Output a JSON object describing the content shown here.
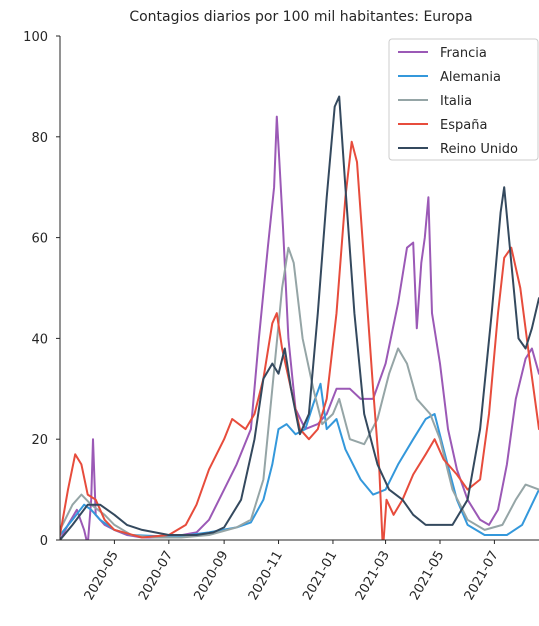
{
  "chart_data": {
    "type": "line",
    "title": "Contagios diarios por 100 mil habitantes: Europa",
    "xlabel": "",
    "ylabel": "",
    "xlim": [
      "2020-03-01",
      "2021-08-20"
    ],
    "ylim": [
      0,
      100
    ],
    "y_ticks": [
      0,
      20,
      40,
      60,
      80,
      100
    ],
    "x_ticks": [
      "2020-05",
      "2020-07",
      "2020-09",
      "2020-11",
      "2021-01",
      "2021-03",
      "2021-05",
      "2021-07"
    ],
    "grid": false,
    "legend_position": "top-right",
    "series": [
      {
        "name": "Francia",
        "color": "#9b59b6",
        "points": [
          [
            "2020-03-01",
            0
          ],
          [
            "2020-03-10",
            3
          ],
          [
            "2020-03-20",
            6
          ],
          [
            "2020-03-28",
            2
          ],
          [
            "2020-04-01",
            -1
          ],
          [
            "2020-04-05",
            8
          ],
          [
            "2020-04-07",
            20
          ],
          [
            "2020-04-10",
            5
          ],
          [
            "2020-04-20",
            3
          ],
          [
            "2020-05-01",
            2
          ],
          [
            "2020-05-15",
            1
          ],
          [
            "2020-06-01",
            0.5
          ],
          [
            "2020-07-01",
            0.5
          ],
          [
            "2020-08-01",
            1.5
          ],
          [
            "2020-08-15",
            4
          ],
          [
            "2020-09-01",
            10
          ],
          [
            "2020-09-15",
            15
          ],
          [
            "2020-10-01",
            22
          ],
          [
            "2020-10-10",
            40
          ],
          [
            "2020-10-20",
            58
          ],
          [
            "2020-10-27",
            70
          ],
          [
            "2020-10-30",
            84
          ],
          [
            "2020-11-02",
            75
          ],
          [
            "2020-11-06",
            62
          ],
          [
            "2020-11-12",
            40
          ],
          [
            "2020-11-20",
            26
          ],
          [
            "2020-12-01",
            22
          ],
          [
            "2020-12-15",
            23
          ],
          [
            "2020-12-25",
            25
          ],
          [
            "2021-01-05",
            30
          ],
          [
            "2021-01-20",
            30
          ],
          [
            "2021-02-01",
            28
          ],
          [
            "2021-02-15",
            28
          ],
          [
            "2021-03-01",
            35
          ],
          [
            "2021-03-15",
            47
          ],
          [
            "2021-03-25",
            58
          ],
          [
            "2021-04-01",
            59
          ],
          [
            "2021-04-05",
            42
          ],
          [
            "2021-04-10",
            55
          ],
          [
            "2021-04-14",
            60
          ],
          [
            "2021-04-18",
            68
          ],
          [
            "2021-04-22",
            45
          ],
          [
            "2021-05-01",
            35
          ],
          [
            "2021-05-10",
            22
          ],
          [
            "2021-05-20",
            14
          ],
          [
            "2021-06-01",
            8
          ],
          [
            "2021-06-15",
            4
          ],
          [
            "2021-06-25",
            3
          ],
          [
            "2021-07-05",
            6
          ],
          [
            "2021-07-15",
            15
          ],
          [
            "2021-07-25",
            28
          ],
          [
            "2021-08-05",
            36
          ],
          [
            "2021-08-12",
            38
          ],
          [
            "2021-08-20",
            33
          ]
        ]
      },
      {
        "name": "Alemania",
        "color": "#3498db",
        "points": [
          [
            "2020-03-01",
            1
          ],
          [
            "2020-03-15",
            4
          ],
          [
            "2020-03-28",
            7
          ],
          [
            "2020-04-05",
            6
          ],
          [
            "2020-04-15",
            4
          ],
          [
            "2020-05-01",
            2
          ],
          [
            "2020-05-20",
            1
          ],
          [
            "2020-06-15",
            0.8
          ],
          [
            "2020-07-15",
            0.8
          ],
          [
            "2020-08-15",
            1.5
          ],
          [
            "2020-09-15",
            2.5
          ],
          [
            "2020-10-01",
            3.5
          ],
          [
            "2020-10-15",
            8
          ],
          [
            "2020-10-25",
            15
          ],
          [
            "2020-11-01",
            22
          ],
          [
            "2020-11-10",
            23
          ],
          [
            "2020-11-20",
            21
          ],
          [
            "2020-12-01",
            22
          ],
          [
            "2020-12-10",
            27
          ],
          [
            "2020-12-18",
            31
          ],
          [
            "2020-12-25",
            22
          ],
          [
            "2021-01-05",
            24
          ],
          [
            "2021-01-15",
            18
          ],
          [
            "2021-02-01",
            12
          ],
          [
            "2021-02-15",
            9
          ],
          [
            "2021-03-01",
            10
          ],
          [
            "2021-03-15",
            15
          ],
          [
            "2021-04-01",
            20
          ],
          [
            "2021-04-15",
            24
          ],
          [
            "2021-04-25",
            25
          ],
          [
            "2021-05-05",
            18
          ],
          [
            "2021-05-20",
            8
          ],
          [
            "2021-06-01",
            3
          ],
          [
            "2021-06-20",
            1
          ],
          [
            "2021-07-15",
            1
          ],
          [
            "2021-08-01",
            3
          ],
          [
            "2021-08-20",
            10
          ]
        ]
      },
      {
        "name": "Italia",
        "color": "#95a5a6",
        "points": [
          [
            "2020-03-01",
            2
          ],
          [
            "2020-03-15",
            7
          ],
          [
            "2020-03-25",
            9
          ],
          [
            "2020-04-05",
            7
          ],
          [
            "2020-04-20",
            5
          ],
          [
            "2020-05-01",
            3
          ],
          [
            "2020-05-20",
            1
          ],
          [
            "2020-06-15",
            0.5
          ],
          [
            "2020-07-15",
            0.5
          ],
          [
            "2020-08-15",
            1
          ],
          [
            "2020-09-15",
            2.5
          ],
          [
            "2020-10-01",
            4
          ],
          [
            "2020-10-15",
            12
          ],
          [
            "2020-10-25",
            30
          ],
          [
            "2020-11-05",
            50
          ],
          [
            "2020-11-12",
            58
          ],
          [
            "2020-11-18",
            55
          ],
          [
            "2020-11-28",
            40
          ],
          [
            "2020-12-10",
            30
          ],
          [
            "2020-12-20",
            23
          ],
          [
            "2021-01-01",
            25
          ],
          [
            "2021-01-08",
            28
          ],
          [
            "2021-01-20",
            20
          ],
          [
            "2021-02-05",
            19
          ],
          [
            "2021-02-20",
            24
          ],
          [
            "2021-03-05",
            33
          ],
          [
            "2021-03-15",
            38
          ],
          [
            "2021-03-25",
            35
          ],
          [
            "2021-04-05",
            28
          ],
          [
            "2021-04-20",
            25
          ],
          [
            "2021-05-01",
            20
          ],
          [
            "2021-05-15",
            10
          ],
          [
            "2021-06-01",
            4
          ],
          [
            "2021-06-20",
            2
          ],
          [
            "2021-07-10",
            3
          ],
          [
            "2021-07-25",
            8
          ],
          [
            "2021-08-05",
            11
          ],
          [
            "2021-08-20",
            10
          ]
        ]
      },
      {
        "name": "España",
        "color": "#e74c3c",
        "points": [
          [
            "2020-03-01",
            1
          ],
          [
            "2020-03-10",
            10
          ],
          [
            "2020-03-18",
            17
          ],
          [
            "2020-03-25",
            15
          ],
          [
            "2020-04-01",
            9
          ],
          [
            "2020-04-10",
            8
          ],
          [
            "2020-04-20",
            4
          ],
          [
            "2020-05-01",
            2
          ],
          [
            "2020-06-01",
            0.5
          ],
          [
            "2020-07-01",
            1
          ],
          [
            "2020-07-20",
            3
          ],
          [
            "2020-08-01",
            7
          ],
          [
            "2020-08-15",
            14
          ],
          [
            "2020-09-01",
            20
          ],
          [
            "2020-09-10",
            24
          ],
          [
            "2020-09-25",
            22
          ],
          [
            "2020-10-05",
            25
          ],
          [
            "2020-10-15",
            32
          ],
          [
            "2020-10-25",
            43
          ],
          [
            "2020-10-30",
            45
          ],
          [
            "2020-11-05",
            38
          ],
          [
            "2020-11-15",
            30
          ],
          [
            "2020-11-25",
            22
          ],
          [
            "2020-12-05",
            20
          ],
          [
            "2020-12-15",
            22
          ],
          [
            "2020-12-25",
            28
          ],
          [
            "2021-01-05",
            45
          ],
          [
            "2021-01-15",
            68
          ],
          [
            "2021-01-22",
            79
          ],
          [
            "2021-01-28",
            75
          ],
          [
            "2021-02-05",
            55
          ],
          [
            "2021-02-15",
            30
          ],
          [
            "2021-02-22",
            14
          ],
          [
            "2021-02-26",
            -2
          ],
          [
            "2021-03-02",
            8
          ],
          [
            "2021-03-10",
            5
          ],
          [
            "2021-03-20",
            8
          ],
          [
            "2021-04-01",
            13
          ],
          [
            "2021-04-15",
            17
          ],
          [
            "2021-04-25",
            20
          ],
          [
            "2021-05-05",
            16
          ],
          [
            "2021-05-20",
            13
          ],
          [
            "2021-06-01",
            10
          ],
          [
            "2021-06-15",
            12
          ],
          [
            "2021-06-25",
            25
          ],
          [
            "2021-07-05",
            45
          ],
          [
            "2021-07-12",
            56
          ],
          [
            "2021-07-20",
            58
          ],
          [
            "2021-07-30",
            50
          ],
          [
            "2021-08-10",
            35
          ],
          [
            "2021-08-20",
            22
          ]
        ]
      },
      {
        "name": "Reino Unido",
        "color": "#34495e",
        "points": [
          [
            "2020-03-01",
            0
          ],
          [
            "2020-03-15",
            3
          ],
          [
            "2020-04-01",
            7
          ],
          [
            "2020-04-15",
            7
          ],
          [
            "2020-05-01",
            5
          ],
          [
            "2020-05-15",
            3
          ],
          [
            "2020-06-01",
            2
          ],
          [
            "2020-07-01",
            1
          ],
          [
            "2020-08-01",
            1
          ],
          [
            "2020-08-20",
            1.5
          ],
          [
            "2020-09-01",
            2.5
          ],
          [
            "2020-09-20",
            8
          ],
          [
            "2020-10-05",
            20
          ],
          [
            "2020-10-15",
            32
          ],
          [
            "2020-10-25",
            35
          ],
          [
            "2020-11-01",
            33
          ],
          [
            "2020-11-08",
            38
          ],
          [
            "2020-11-15",
            30
          ],
          [
            "2020-11-25",
            21
          ],
          [
            "2020-12-05",
            25
          ],
          [
            "2020-12-15",
            45
          ],
          [
            "2020-12-25",
            68
          ],
          [
            "2021-01-03",
            86
          ],
          [
            "2021-01-08",
            88
          ],
          [
            "2021-01-15",
            70
          ],
          [
            "2021-01-25",
            45
          ],
          [
            "2021-02-05",
            25
          ],
          [
            "2021-02-20",
            15
          ],
          [
            "2021-03-05",
            10
          ],
          [
            "2021-03-20",
            8
          ],
          [
            "2021-04-01",
            5
          ],
          [
            "2021-04-15",
            3
          ],
          [
            "2021-05-01",
            3
          ],
          [
            "2021-05-15",
            3
          ],
          [
            "2021-06-01",
            8
          ],
          [
            "2021-06-15",
            22
          ],
          [
            "2021-06-28",
            45
          ],
          [
            "2021-07-08",
            65
          ],
          [
            "2021-07-12",
            70
          ],
          [
            "2021-07-20",
            55
          ],
          [
            "2021-07-28",
            40
          ],
          [
            "2021-08-05",
            38
          ],
          [
            "2021-08-12",
            42
          ],
          [
            "2021-08-20",
            48
          ]
        ]
      }
    ]
  }
}
